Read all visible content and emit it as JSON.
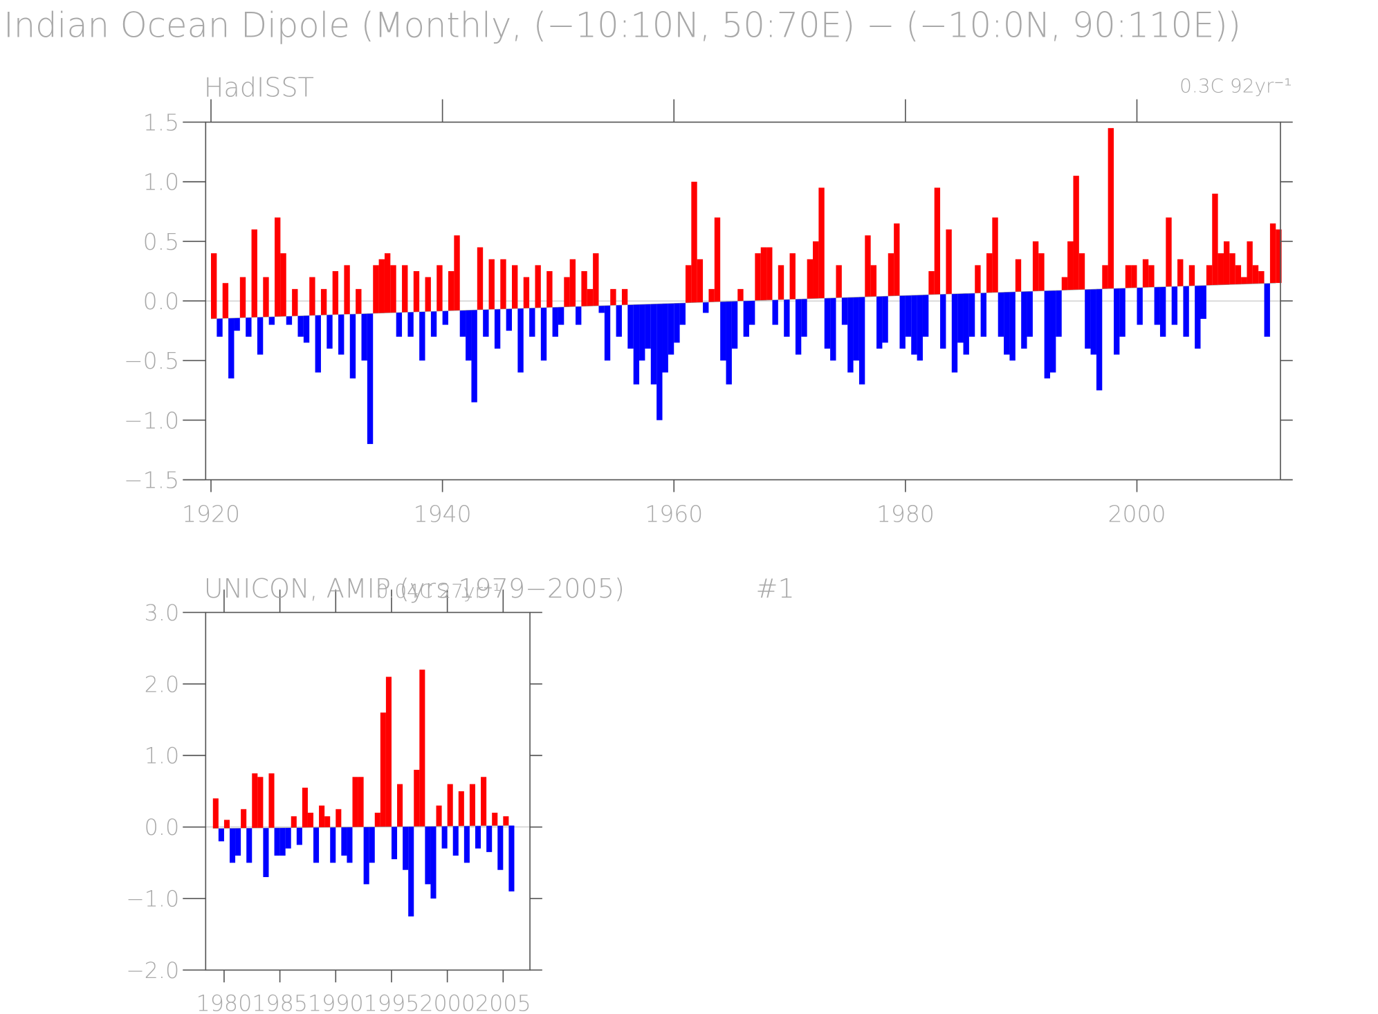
{
  "title": "Indian Ocean Dipole (Monthly, (−10:10N, 50:70E) − (−10:0N, 90:110E))",
  "chart_data": [
    {
      "type": "bar",
      "subtitle": "HadISST",
      "trend_label": "0.3C 92yr⁻¹",
      "above_color": "#ff0000",
      "below_color": "#0000ff",
      "trend": {
        "x": [
          1920,
          2012
        ],
        "y": [
          -0.15,
          0.15
        ]
      },
      "x": [
        1920,
        1920.5,
        1921,
        1921.5,
        1922,
        1922.5,
        1923,
        1923.5,
        1924,
        1924.5,
        1925,
        1925.5,
        1926,
        1926.5,
        1927,
        1927.5,
        1928,
        1928.5,
        1929,
        1929.5,
        1930,
        1930.5,
        1931,
        1931.5,
        1932,
        1932.5,
        1933,
        1933.5,
        1934,
        1934.5,
        1935,
        1935.5,
        1936,
        1936.5,
        1937,
        1937.5,
        1938,
        1938.5,
        1939,
        1939.5,
        1940,
        1940.5,
        1941,
        1941.5,
        1942,
        1942.5,
        1943,
        1943.5,
        1944,
        1944.5,
        1945,
        1945.5,
        1946,
        1946.5,
        1947,
        1947.5,
        1948,
        1948.5,
        1949,
        1949.5,
        1950,
        1950.5,
        1951,
        1951.5,
        1952,
        1952.5,
        1953,
        1953.5,
        1954,
        1954.5,
        1955,
        1955.5,
        1956,
        1956.5,
        1957,
        1957.5,
        1958,
        1958.5,
        1959,
        1959.5,
        1960,
        1960.5,
        1961,
        1961.5,
        1962,
        1962.5,
        1963,
        1963.5,
        1964,
        1964.5,
        1965,
        1965.5,
        1966,
        1966.5,
        1967,
        1967.5,
        1968,
        1968.5,
        1969,
        1969.5,
        1970,
        1970.5,
        1971,
        1971.5,
        1972,
        1972.5,
        1973,
        1973.5,
        1974,
        1974.5,
        1975,
        1975.5,
        1976,
        1976.5,
        1977,
        1977.5,
        1978,
        1978.5,
        1979,
        1979.5,
        1980,
        1980.5,
        1981,
        1981.5,
        1982,
        1982.5,
        1983,
        1983.5,
        1984,
        1984.5,
        1985,
        1985.5,
        1986,
        1986.5,
        1987,
        1987.5,
        1988,
        1988.5,
        1989,
        1989.5,
        1990,
        1990.5,
        1991,
        1991.5,
        1992,
        1992.5,
        1993,
        1993.5,
        1994,
        1994.5,
        1995,
        1995.5,
        1996,
        1996.5,
        1997,
        1997.5,
        1998,
        1998.5,
        1999,
        1999.5,
        2000,
        2000.5,
        2001,
        2001.5,
        2002,
        2002.5,
        2003,
        2003.5,
        2004,
        2004.5,
        2005,
        2005.5,
        2006,
        2006.5,
        2007,
        2007.5,
        2008,
        2008.5,
        2009,
        2009.5,
        2010,
        2010.5,
        2011,
        2011.5,
        2012
      ],
      "values": [
        0.4,
        -0.3,
        0.15,
        -0.65,
        -0.25,
        0.2,
        -0.3,
        0.6,
        -0.45,
        0.2,
        -0.2,
        0.7,
        0.4,
        -0.2,
        0.1,
        -0.3,
        -0.35,
        0.2,
        -0.6,
        0.1,
        -0.4,
        0.25,
        -0.45,
        0.3,
        -0.65,
        0.1,
        -0.5,
        -1.2,
        0.3,
        0.35,
        0.4,
        0.3,
        -0.3,
        0.3,
        -0.3,
        0.25,
        -0.5,
        0.2,
        -0.3,
        0.3,
        -0.2,
        0.25,
        0.55,
        -0.3,
        -0.5,
        -0.85,
        0.45,
        -0.3,
        0.35,
        -0.4,
        0.35,
        -0.25,
        0.3,
        -0.6,
        0.2,
        -0.3,
        0.3,
        -0.5,
        0.25,
        -0.3,
        -0.2,
        0.2,
        0.35,
        -0.2,
        0.25,
        0.1,
        0.4,
        -0.1,
        -0.5,
        0.1,
        -0.3,
        0.1,
        -0.4,
        -0.7,
        -0.5,
        -0.4,
        -0.7,
        -1.0,
        -0.6,
        -0.45,
        -0.35,
        -0.2,
        0.3,
        1.0,
        0.35,
        -0.1,
        0.1,
        0.7,
        -0.5,
        -0.7,
        -0.4,
        0.1,
        -0.3,
        -0.2,
        0.4,
        0.45,
        0.45,
        -0.2,
        0.3,
        -0.3,
        0.4,
        -0.45,
        -0.3,
        0.35,
        0.5,
        0.95,
        -0.4,
        -0.5,
        0.3,
        -0.2,
        -0.6,
        -0.5,
        -0.7,
        0.55,
        0.3,
        -0.4,
        -0.35,
        0.4,
        0.65,
        -0.4,
        -0.3,
        -0.45,
        -0.5,
        -0.3,
        0.25,
        0.95,
        -0.4,
        0.6,
        -0.6,
        -0.35,
        -0.45,
        -0.3,
        0.3,
        -0.3,
        0.4,
        0.7,
        -0.3,
        -0.45,
        -0.5,
        0.35,
        -0.4,
        -0.3,
        0.5,
        0.4,
        -0.65,
        -0.6,
        -0.3,
        0.2,
        0.5,
        1.05,
        0.4,
        -0.4,
        -0.45,
        -0.75,
        0.3,
        1.45,
        -0.45,
        -0.3,
        0.3,
        0.3,
        -0.2,
        0.35,
        0.3,
        -0.2,
        -0.3,
        0.7,
        -0.2,
        0.35,
        -0.3,
        0.3,
        -0.4,
        -0.15,
        0.3,
        0.9,
        0.4,
        0.5,
        0.4,
        0.3,
        0.2,
        0.5,
        0.3,
        0.25,
        -0.3,
        0.65,
        0.6
      ],
      "xlim": [
        1919.54,
        2012.4
      ],
      "xticks": [
        1920,
        1940,
        1960,
        1980,
        2000
      ],
      "ylim": [
        -1.5,
        1.5
      ],
      "yticks": [
        {
          "value": -1.5,
          "label": "−1.5"
        },
        {
          "value": -1.0,
          "label": "−1.0"
        },
        {
          "value": -0.5,
          "label": "−0.5"
        },
        {
          "value": 0,
          "label": "0.0"
        },
        0.5,
        {
          "value": 1.0,
          "label": "1.0"
        },
        1.5
      ]
    },
    {
      "type": "bar",
      "subtitle": "UNICON, AMIP (yrs 1979−2005)",
      "run": "#1",
      "trend_label": "0.04C 27yr⁻¹",
      "above_color": "#ff0000",
      "below_color": "#0000ff",
      "trend": {
        "x": [
          1979,
          2005.5
        ],
        "y": [
          -0.02,
          0.02
        ]
      },
      "x": [
        1979,
        1979.5,
        1980,
        1980.5,
        1981,
        1981.5,
        1982,
        1982.5,
        1983,
        1983.5,
        1984,
        1984.5,
        1985,
        1985.5,
        1986,
        1986.5,
        1987,
        1987.5,
        1988,
        1988.5,
        1989,
        1989.5,
        1990,
        1990.5,
        1991,
        1991.5,
        1992,
        1992.5,
        1993,
        1993.5,
        1994,
        1994.5,
        1995,
        1995.5,
        1996,
        1996.5,
        1997,
        1997.5,
        1998,
        1998.5,
        1999,
        1999.5,
        2000,
        2000.5,
        2001,
        2001.5,
        2002,
        2002.5,
        2003,
        2003.5,
        2004,
        2004.5,
        2005,
        2005.5
      ],
      "values": [
        0.4,
        -0.2,
        0.1,
        -0.5,
        -0.4,
        0.25,
        -0.5,
        0.75,
        0.7,
        -0.7,
        0.75,
        -0.4,
        -0.4,
        -0.3,
        0.15,
        -0.25,
        0.55,
        0.2,
        -0.5,
        0.3,
        0.15,
        -0.5,
        0.25,
        -0.4,
        -0.5,
        0.7,
        0.7,
        -0.8,
        -0.5,
        0.2,
        1.6,
        2.1,
        -0.45,
        0.6,
        -0.6,
        -1.25,
        0.8,
        2.2,
        -0.8,
        -1.0,
        0.3,
        -0.3,
        0.6,
        -0.4,
        0.5,
        -0.5,
        0.6,
        -0.3,
        0.7,
        -0.35,
        0.2,
        -0.6,
        0.15,
        -0.9
      ],
      "xlim": [
        1978.35,
        2007.4
      ],
      "xticks": [
        1980,
        1985,
        1990,
        1995,
        2000,
        2005
      ],
      "ylim": [
        -2,
        3
      ],
      "yticks": [
        {
          "value": -2,
          "label": "−2.0"
        },
        {
          "value": -1,
          "label": "−1.0"
        },
        {
          "value": 0,
          "label": "0.0"
        },
        {
          "value": 1,
          "label": "1.0"
        },
        {
          "value": 2,
          "label": "2.0"
        },
        {
          "value": 3,
          "label": "3.0"
        }
      ]
    }
  ]
}
